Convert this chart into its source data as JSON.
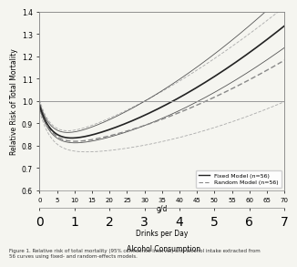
{
  "title": "",
  "ylabel": "Relative Risk of Total Mortality",
  "xlabel_top": "g/d",
  "xlabel_bottom": "Drinks per Day",
  "xlabel_main": "Alcohol Consumption",
  "xlim": [
    0,
    70
  ],
  "ylim": [
    0.6,
    1.4
  ],
  "yticks": [
    0.6,
    0.7,
    0.8,
    0.9,
    1.0,
    1.1,
    1.2,
    1.3,
    1.4
  ],
  "xticks_gd": [
    0,
    5,
    10,
    15,
    20,
    25,
    30,
    35,
    40,
    45,
    50,
    55,
    60,
    65,
    70
  ],
  "xticks_drinks": [
    0,
    1,
    2,
    3,
    4,
    5,
    6,
    7
  ],
  "hline_y": 1.0,
  "bg_color": "#f5f5f0",
  "plot_bg": "#f5f5f0",
  "line_color_fixed": "#222222",
  "line_color_random": "#888888",
  "ci_color_fixed": "#555555",
  "ci_color_random": "#aaaaaa",
  "legend_fixed": "Fixed Model (n=56)",
  "legend_random": "Random Model (n=56)",
  "figure_caption": "Figure 1. Relative risk of total mortality (95% confidence interval) and alcohol intake extracted from\n56 curves using fixed- and random-effects models."
}
